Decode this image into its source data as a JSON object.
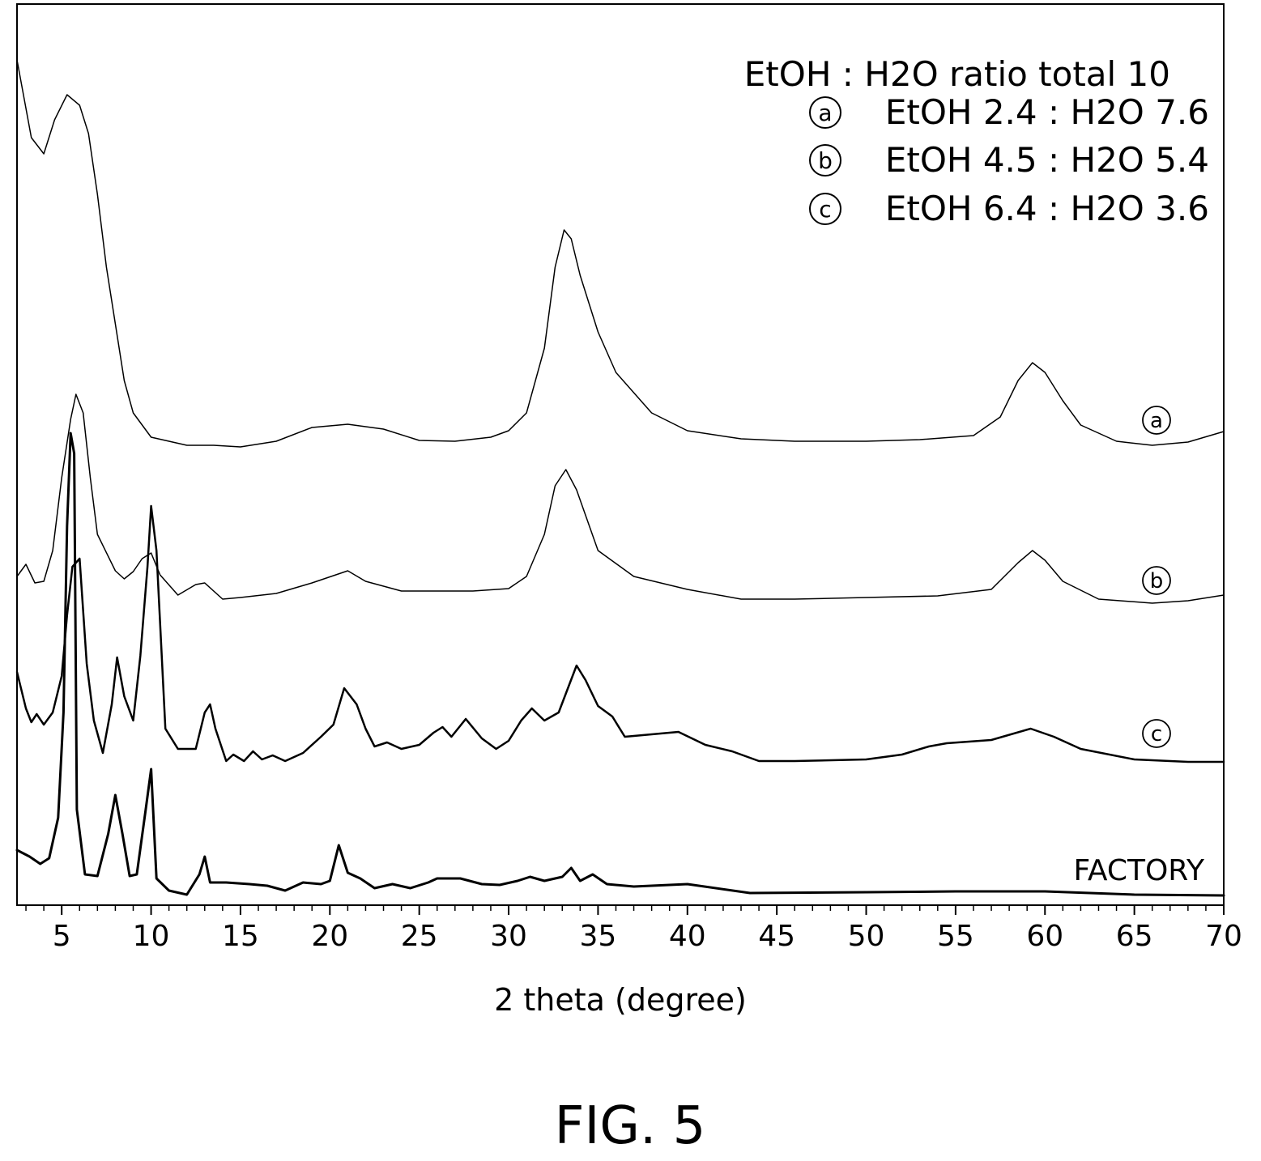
{
  "figure_label": "FIG. 5",
  "chart_data": {
    "type": "line",
    "xlabel": "2 theta (degree)",
    "ylabel": "",
    "xlim": [
      2.5,
      70
    ],
    "x_ticks": [
      5,
      10,
      15,
      20,
      25,
      30,
      35,
      40,
      45,
      50,
      55,
      60,
      65,
      70
    ],
    "y_ticks_shown": false,
    "grid": false,
    "legend_position": "top-right",
    "legend": {
      "title": "EtOH : H2O ratio total 10",
      "entries": [
        {
          "marker": "a",
          "text": "EtOH 2.4 : H2O 7.6"
        },
        {
          "marker": "b",
          "text": "EtOH 4.5 : H2O 5.4"
        },
        {
          "marker": "c",
          "text": "EtOH 6.4 : H2O 3.6"
        }
      ]
    },
    "series": [
      {
        "name": "a",
        "label": "a",
        "stroke_width": 1.5,
        "points": [
          [
            2.5,
            74
          ],
          [
            3.3,
            170
          ],
          [
            4,
            190
          ],
          [
            4.6,
            148
          ],
          [
            5.3,
            117
          ],
          [
            6,
            130
          ],
          [
            6.5,
            165
          ],
          [
            7,
            240
          ],
          [
            7.5,
            330
          ],
          [
            8,
            400
          ],
          [
            8.5,
            470
          ],
          [
            9,
            510
          ],
          [
            10,
            540
          ],
          [
            12,
            550
          ],
          [
            13.5,
            550
          ],
          [
            15,
            552
          ],
          [
            17,
            545
          ],
          [
            19,
            528
          ],
          [
            21,
            524
          ],
          [
            23,
            530
          ],
          [
            25,
            544
          ],
          [
            27,
            545
          ],
          [
            29,
            540
          ],
          [
            30,
            532
          ],
          [
            31,
            510
          ],
          [
            32,
            430
          ],
          [
            32.6,
            330
          ],
          [
            33.1,
            284
          ],
          [
            33.5,
            295
          ],
          [
            34,
            340
          ],
          [
            35,
            410
          ],
          [
            36,
            460
          ],
          [
            38,
            510
          ],
          [
            40,
            532
          ],
          [
            43,
            542
          ],
          [
            46,
            545
          ],
          [
            50,
            545
          ],
          [
            53,
            543
          ],
          [
            56,
            538
          ],
          [
            57.5,
            515
          ],
          [
            58.5,
            470
          ],
          [
            59.3,
            448
          ],
          [
            60,
            460
          ],
          [
            61,
            495
          ],
          [
            62,
            525
          ],
          [
            64,
            545
          ],
          [
            66,
            550
          ],
          [
            68,
            546
          ],
          [
            70,
            533
          ]
        ]
      },
      {
        "name": "b",
        "label": "b",
        "stroke_width": 1.5,
        "points": [
          [
            2.5,
            712
          ],
          [
            3,
            697
          ],
          [
            3.5,
            720
          ],
          [
            4,
            718
          ],
          [
            4.5,
            680
          ],
          [
            5,
            590
          ],
          [
            5.5,
            518
          ],
          [
            5.8,
            487
          ],
          [
            6.2,
            510
          ],
          [
            6.6,
            590
          ],
          [
            7,
            660
          ],
          [
            8,
            705
          ],
          [
            8.5,
            715
          ],
          [
            9,
            706
          ],
          [
            9.5,
            690
          ],
          [
            10,
            683
          ],
          [
            10.5,
            710
          ],
          [
            11.5,
            735
          ],
          [
            12.5,
            722
          ],
          [
            13,
            720
          ],
          [
            14,
            740
          ],
          [
            15,
            738
          ],
          [
            17,
            733
          ],
          [
            19,
            720
          ],
          [
            21,
            705
          ],
          [
            22,
            718
          ],
          [
            24,
            730
          ],
          [
            26,
            730
          ],
          [
            28,
            730
          ],
          [
            30,
            727
          ],
          [
            31,
            712
          ],
          [
            32,
            660
          ],
          [
            32.6,
            600
          ],
          [
            33.2,
            580
          ],
          [
            33.8,
            605
          ],
          [
            35,
            680
          ],
          [
            37,
            712
          ],
          [
            40,
            728
          ],
          [
            43,
            740
          ],
          [
            46,
            740
          ],
          [
            50,
            738
          ],
          [
            54,
            736
          ],
          [
            57,
            728
          ],
          [
            58.5,
            695
          ],
          [
            59.3,
            680
          ],
          [
            60,
            692
          ],
          [
            61,
            718
          ],
          [
            63,
            740
          ],
          [
            66,
            745
          ],
          [
            68,
            742
          ],
          [
            70,
            735
          ]
        ]
      },
      {
        "name": "c",
        "label": "c",
        "stroke_width": 2.5,
        "points": [
          [
            2.5,
            830
          ],
          [
            3,
            875
          ],
          [
            3.3,
            892
          ],
          [
            3.6,
            882
          ],
          [
            4,
            895
          ],
          [
            4.5,
            880
          ],
          [
            5,
            835
          ],
          [
            5.3,
            760
          ],
          [
            5.6,
            700
          ],
          [
            6,
            690
          ],
          [
            6.4,
            820
          ],
          [
            6.8,
            890
          ],
          [
            7.3,
            930
          ],
          [
            7.8,
            870
          ],
          [
            8.1,
            812
          ],
          [
            8.5,
            860
          ],
          [
            9,
            890
          ],
          [
            9.4,
            810
          ],
          [
            9.8,
            700
          ],
          [
            10,
            625
          ],
          [
            10.3,
            680
          ],
          [
            10.8,
            900
          ],
          [
            11.5,
            925
          ],
          [
            12.5,
            925
          ],
          [
            13,
            880
          ],
          [
            13.3,
            870
          ],
          [
            13.6,
            900
          ],
          [
            14.2,
            940
          ],
          [
            14.6,
            932
          ],
          [
            15.2,
            940
          ],
          [
            15.7,
            928
          ],
          [
            16.2,
            938
          ],
          [
            16.8,
            933
          ],
          [
            17.5,
            940
          ],
          [
            18.5,
            930
          ],
          [
            19.5,
            910
          ],
          [
            20.2,
            895
          ],
          [
            20.8,
            850
          ],
          [
            21.5,
            870
          ],
          [
            22,
            900
          ],
          [
            22.5,
            922
          ],
          [
            23.2,
            917
          ],
          [
            24,
            925
          ],
          [
            25,
            920
          ],
          [
            25.8,
            905
          ],
          [
            26.3,
            898
          ],
          [
            26.8,
            910
          ],
          [
            27.6,
            888
          ],
          [
            28.5,
            912
          ],
          [
            29.3,
            925
          ],
          [
            30,
            915
          ],
          [
            30.7,
            890
          ],
          [
            31.3,
            875
          ],
          [
            32,
            890
          ],
          [
            32.8,
            880
          ],
          [
            33.8,
            822
          ],
          [
            34.3,
            840
          ],
          [
            35,
            872
          ],
          [
            35.8,
            885
          ],
          [
            36.5,
            910
          ],
          [
            38,
            907
          ],
          [
            39.5,
            904
          ],
          [
            41,
            920
          ],
          [
            42.5,
            928
          ],
          [
            44,
            940
          ],
          [
            46,
            940
          ],
          [
            50,
            938
          ],
          [
            52,
            932
          ],
          [
            53.5,
            922
          ],
          [
            54.5,
            918
          ],
          [
            57,
            914
          ],
          [
            59.2,
            900
          ],
          [
            60.5,
            910
          ],
          [
            62,
            925
          ],
          [
            65,
            938
          ],
          [
            68,
            941
          ],
          [
            70,
            941
          ]
        ]
      },
      {
        "name": "FACTORY",
        "label": "FACTORY",
        "stroke_width": 3,
        "points": [
          [
            2.5,
            1050
          ],
          [
            3.2,
            1058
          ],
          [
            3.8,
            1067
          ],
          [
            4.3,
            1060
          ],
          [
            4.8,
            1010
          ],
          [
            5.1,
            880
          ],
          [
            5.3,
            650
          ],
          [
            5.5,
            535
          ],
          [
            5.7,
            560
          ],
          [
            5.85,
            1000
          ],
          [
            6.3,
            1080
          ],
          [
            7,
            1082
          ],
          [
            7.6,
            1030
          ],
          [
            8,
            982
          ],
          [
            8.4,
            1030
          ],
          [
            8.8,
            1082
          ],
          [
            9.2,
            1080
          ],
          [
            9.7,
            1000
          ],
          [
            10,
            950
          ],
          [
            10.3,
            1085
          ],
          [
            11,
            1100
          ],
          [
            12,
            1105
          ],
          [
            12.7,
            1080
          ],
          [
            13,
            1058
          ],
          [
            13.3,
            1090
          ],
          [
            14.2,
            1090
          ],
          [
            15.5,
            1092
          ],
          [
            16.5,
            1094
          ],
          [
            17.5,
            1100
          ],
          [
            18.5,
            1090
          ],
          [
            19.5,
            1092
          ],
          [
            20,
            1088
          ],
          [
            20.5,
            1044
          ],
          [
            21,
            1078
          ],
          [
            21.7,
            1085
          ],
          [
            22.5,
            1097
          ],
          [
            23.5,
            1092
          ],
          [
            24.5,
            1097
          ],
          [
            25.5,
            1090
          ],
          [
            26,
            1085
          ],
          [
            27.3,
            1085
          ],
          [
            28.5,
            1092
          ],
          [
            29.5,
            1093
          ],
          [
            30.5,
            1088
          ],
          [
            31.2,
            1083
          ],
          [
            32,
            1088
          ],
          [
            33,
            1083
          ],
          [
            33.5,
            1072
          ],
          [
            34,
            1088
          ],
          [
            34.7,
            1080
          ],
          [
            35.5,
            1092
          ],
          [
            37,
            1095
          ],
          [
            40,
            1092
          ],
          [
            43.5,
            1103
          ],
          [
            50,
            1102
          ],
          [
            55,
            1101
          ],
          [
            60,
            1101
          ],
          [
            65,
            1105
          ],
          [
            70,
            1106
          ]
        ]
      }
    ]
  }
}
